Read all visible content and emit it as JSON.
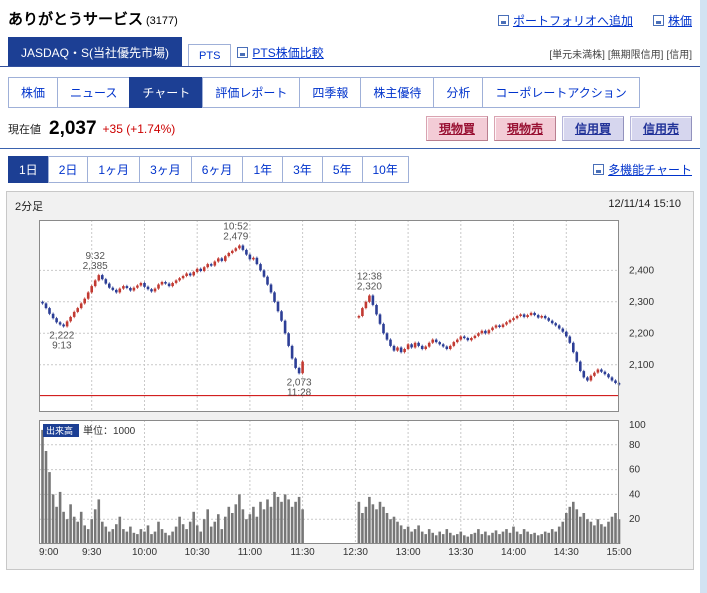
{
  "header": {
    "title": "ありがとうサービス",
    "code": "(3177)",
    "links": [
      {
        "name": "portfolio-add",
        "label": "ポートフォリオへ追加"
      },
      {
        "name": "stock-price",
        "label": "株価"
      }
    ]
  },
  "market_tabs": {
    "primary": "JASDAQ・S(当社優先市場)",
    "secondary": "PTS",
    "compare_link": "PTS株価比較",
    "badges": [
      {
        "name": "unit-share-badge",
        "label": "[単元未満株]"
      },
      {
        "name": "open-margin-badge",
        "label": "[無期限信用]"
      },
      {
        "name": "margin-badge",
        "label": "[信用]"
      }
    ]
  },
  "nav_tabs": [
    {
      "name": "stock-price",
      "label": "株価",
      "active": false
    },
    {
      "name": "news",
      "label": "ニュース",
      "active": false
    },
    {
      "name": "chart",
      "label": "チャート",
      "active": true
    },
    {
      "name": "rating-report",
      "label": "評価レポート",
      "active": false
    },
    {
      "name": "shikiho",
      "label": "四季報",
      "active": false
    },
    {
      "name": "shareholder-benefit",
      "label": "株主優待",
      "active": false
    },
    {
      "name": "analysis",
      "label": "分析",
      "active": false
    },
    {
      "name": "corporate-action",
      "label": "コーポレートアクション",
      "active": false
    }
  ],
  "quote": {
    "label": "現在値",
    "price": "2,037",
    "change": "+35 (+1.74%)",
    "buttons": [
      {
        "name": "cash-buy-button",
        "label": "現物買",
        "type": "cash"
      },
      {
        "name": "cash-sell-button",
        "label": "現物売",
        "type": "cash"
      },
      {
        "name": "margin-buy-button",
        "label": "信用買",
        "type": "margin"
      },
      {
        "name": "margin-sell-button",
        "label": "信用売",
        "type": "margin"
      }
    ]
  },
  "period_tabs": [
    {
      "name": "1d",
      "label": "1日",
      "active": true
    },
    {
      "name": "2d",
      "label": "2日",
      "active": false
    },
    {
      "name": "1mo",
      "label": "1ヶ月",
      "active": false
    },
    {
      "name": "3mo",
      "label": "3ヶ月",
      "active": false
    },
    {
      "name": "6mo",
      "label": "6ヶ月",
      "active": false
    },
    {
      "name": "1y",
      "label": "1年",
      "active": false
    },
    {
      "name": "3y",
      "label": "3年",
      "active": false
    },
    {
      "name": "5y",
      "label": "5年",
      "active": false
    },
    {
      "name": "10y",
      "label": "10年",
      "active": false
    }
  ],
  "multi_chart_link": "多機能チャート",
  "chart_header": {
    "interval": "2分足",
    "datetime": "12/11/14 15:10"
  },
  "chart_data": {
    "type": "candlestick",
    "interval_minutes": 2,
    "ylim": [
      1950,
      2560
    ],
    "price_ticks": [
      {
        "label": "2,400",
        "value": 2400
      },
      {
        "label": "2,300",
        "value": 2300
      },
      {
        "label": "2,200",
        "value": 2200
      },
      {
        "label": "2,100",
        "value": 2100
      }
    ],
    "prev_close": 2002,
    "x_ticks": [
      {
        "label": "9:00",
        "minute": 0
      },
      {
        "label": "9:30",
        "minute": 30
      },
      {
        "label": "10:00",
        "minute": 60
      },
      {
        "label": "10:30",
        "minute": 90
      },
      {
        "label": "11:00",
        "minute": 120
      },
      {
        "label": "11:30",
        "minute": 150
      },
      {
        "label": "12:30",
        "minute": 210
      },
      {
        "label": "13:00",
        "minute": 240
      },
      {
        "label": "13:30",
        "minute": 270
      },
      {
        "label": "14:00",
        "minute": 300
      },
      {
        "label": "14:30",
        "minute": 330
      },
      {
        "label": "15:00",
        "minute": 360
      }
    ],
    "annotations": [
      {
        "time": "9:32",
        "price_label": "2,385",
        "minute": 32,
        "price": 2385,
        "pos": "above"
      },
      {
        "time": "9:13",
        "price_label": "2,222",
        "minute": 13,
        "price": 2222,
        "pos": "below"
      },
      {
        "time": "10:52",
        "price_label": "2,479",
        "minute": 112,
        "price": 2479,
        "pos": "above"
      },
      {
        "time": "11:28",
        "price_label": "2,073",
        "minute": 148,
        "price": 2073,
        "pos": "below"
      },
      {
        "time": "12:38",
        "price_label": "2,320",
        "minute": 218,
        "price": 2320,
        "pos": "above"
      }
    ],
    "volume_label_chip": "出来高",
    "volume_label_rest": "単位：1000",
    "volume_ylim": [
      0,
      100
    ],
    "volume_ticks": [
      {
        "label": "100",
        "value": 100
      },
      {
        "label": "80",
        "value": 80
      },
      {
        "label": "60",
        "value": 60
      },
      {
        "label": "40",
        "value": 40
      },
      {
        "label": "20",
        "value": 20
      }
    ],
    "sessions": [
      {
        "name": "morning",
        "first_close_minute": 2,
        "open": 2300,
        "closes": [
          2295,
          2280,
          2262,
          2248,
          2235,
          2228,
          2222,
          2238,
          2252,
          2268,
          2280,
          2295,
          2310,
          2330,
          2350,
          2368,
          2385,
          2372,
          2358,
          2345,
          2338,
          2330,
          2342,
          2350,
          2344,
          2336,
          2345,
          2352,
          2360,
          2348,
          2340,
          2333,
          2342,
          2355,
          2363,
          2358,
          2350,
          2360,
          2368,
          2375,
          2382,
          2390,
          2384,
          2395,
          2405,
          2398,
          2410,
          2420,
          2415,
          2428,
          2438,
          2430,
          2445,
          2455,
          2462,
          2470,
          2479,
          2465,
          2450,
          2435,
          2440,
          2420,
          2400,
          2380,
          2355,
          2330,
          2300,
          2270,
          2240,
          2200,
          2160,
          2120,
          2090,
          2073,
          2110
        ],
        "volumes": [
          92,
          75,
          58,
          40,
          30,
          42,
          26,
          20,
          32,
          22,
          18,
          26,
          15,
          12,
          20,
          28,
          36,
          18,
          14,
          10,
          12,
          16,
          22,
          12,
          10,
          14,
          9,
          8,
          12,
          10,
          15,
          8,
          10,
          18,
          12,
          9,
          7,
          10,
          14,
          22,
          16,
          12,
          18,
          26,
          15,
          10,
          20,
          28,
          14,
          18,
          24,
          12,
          22,
          30,
          25,
          32,
          40,
          28,
          20,
          24,
          30,
          22,
          34,
          28,
          36,
          30,
          42,
          38,
          34,
          40,
          36,
          30,
          34,
          38,
          28
        ]
      },
      {
        "name": "afternoon",
        "first_close_minute": 212,
        "open": 2250,
        "closes": [
          2255,
          2280,
          2300,
          2320,
          2290,
          2260,
          2230,
          2200,
          2180,
          2160,
          2145,
          2155,
          2140,
          2150,
          2165,
          2155,
          2170,
          2160,
          2150,
          2158,
          2170,
          2180,
          2172,
          2165,
          2158,
          2150,
          2160,
          2172,
          2180,
          2190,
          2185,
          2178,
          2185,
          2192,
          2200,
          2208,
          2200,
          2210,
          2218,
          2225,
          2220,
          2228,
          2235,
          2242,
          2248,
          2255,
          2260,
          2252,
          2258,
          2265,
          2258,
          2250,
          2255,
          2248,
          2240,
          2232,
          2225,
          2215,
          2205,
          2190,
          2170,
          2140,
          2110,
          2080,
          2060,
          2050,
          2065,
          2075,
          2085,
          2078,
          2070,
          2060,
          2050,
          2042,
          2037
        ],
        "volumes": [
          34,
          25,
          30,
          38,
          32,
          28,
          34,
          30,
          25,
          20,
          22,
          18,
          15,
          12,
          14,
          10,
          12,
          15,
          10,
          8,
          12,
          9,
          7,
          10,
          8,
          12,
          9,
          7,
          8,
          10,
          7,
          6,
          8,
          9,
          12,
          8,
          10,
          7,
          9,
          11,
          8,
          10,
          12,
          9,
          14,
          10,
          8,
          12,
          10,
          8,
          9,
          7,
          8,
          10,
          9,
          12,
          10,
          14,
          18,
          25,
          30,
          34,
          28,
          22,
          25,
          20,
          18,
          15,
          20,
          16,
          14,
          18,
          22,
          25,
          20
        ]
      }
    ],
    "colors": {
      "up": "#c23a32",
      "down": "#2c3e96",
      "volume": "#777777",
      "prev_close_line": "#cc0000"
    }
  }
}
